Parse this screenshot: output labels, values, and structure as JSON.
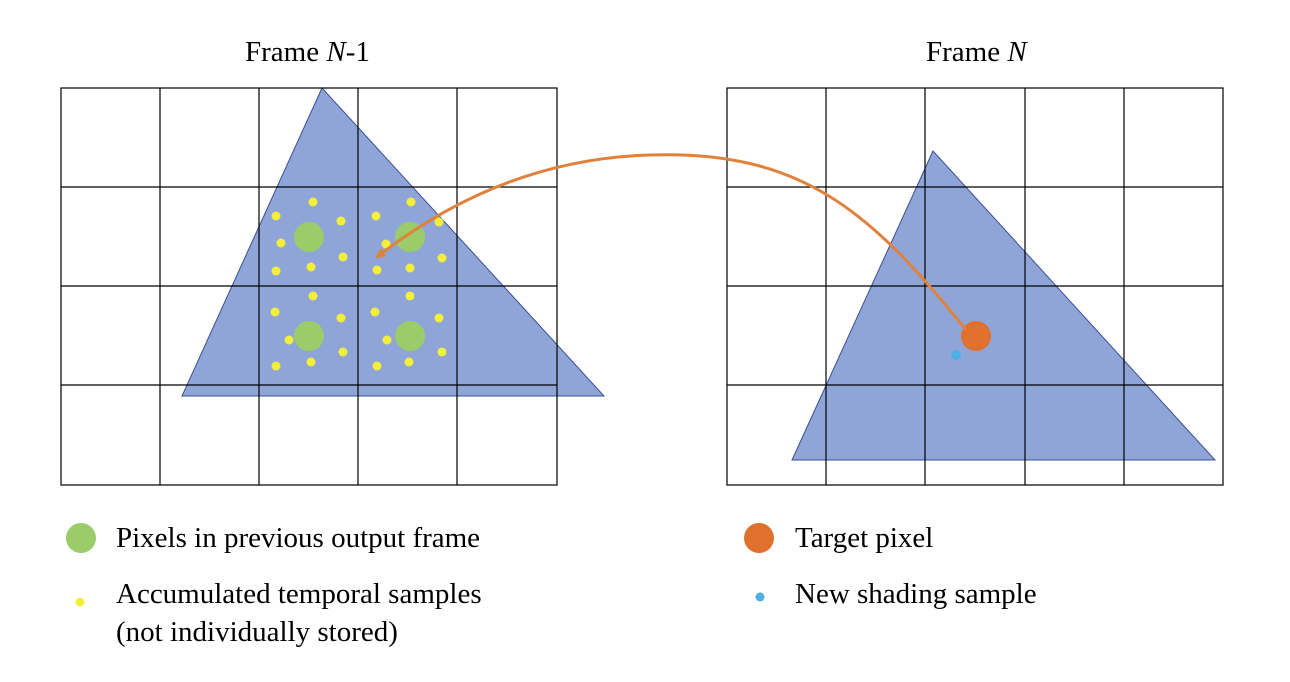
{
  "frames": {
    "previous": {
      "label": "Frame ",
      "italic": "N",
      "suffix": "-1"
    },
    "current": {
      "label": "Frame ",
      "italic": "N",
      "suffix": ""
    }
  },
  "colors": {
    "triangle": "#8fa5d8",
    "triangle_stroke": "#3a4f8f",
    "grid": "#000000",
    "pixel": "#9acc6a",
    "sample": "#f2ee3a",
    "target": "#e0702d",
    "new_sample": "#4faee3",
    "arrow": "#e0823d"
  },
  "legend": {
    "pixels": "Pixels in previous output frame",
    "samples_line1": "Accumulated temporal samples",
    "samples_line2": "(not individually stored)",
    "target": "Target pixel",
    "new_sample": "New shading sample"
  }
}
